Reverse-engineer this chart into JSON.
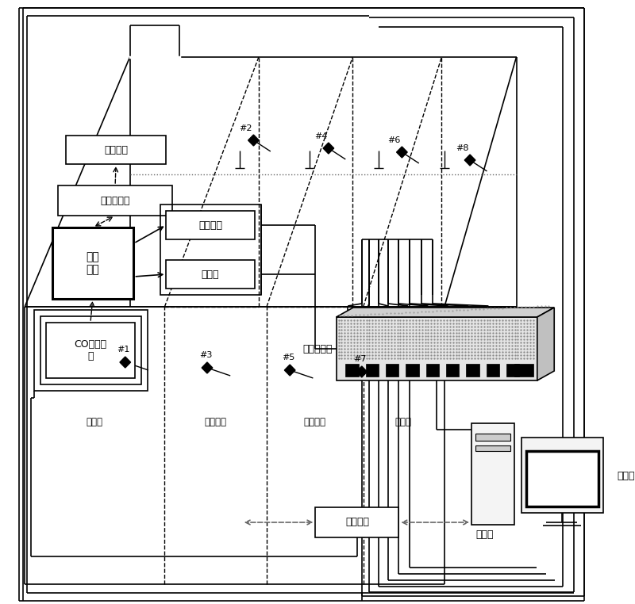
{
  "bg": "#ffffff",
  "lc": "#000000",
  "sections": [
    "预热段",
    "一加热段",
    "二加热段",
    "均热段"
  ],
  "top_sensors": [
    "#2",
    "#4",
    "#6",
    "#8"
  ],
  "bot_sensors": [
    "#1",
    "#3",
    "#5",
    "#7"
  ],
  "labels": {
    "ctrl_out": "控制输出",
    "air_cmd": "送风量指令",
    "ctrl_sys": "控制\n系统",
    "param": "参数采集",
    "radiation": "辐射能",
    "co_vol": "CO体积浓\n度",
    "video_split": "视频分割器",
    "sig_conv": "信号转换",
    "computer": "计算机",
    "monitor": "显示器"
  }
}
